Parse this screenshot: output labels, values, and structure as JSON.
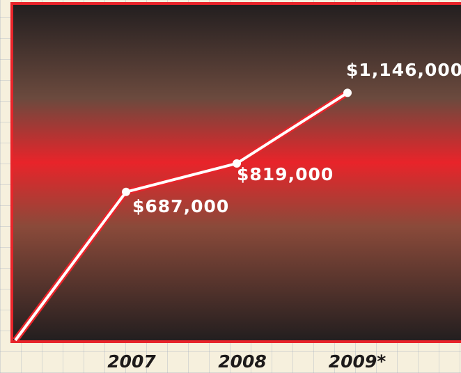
{
  "chart_data": {
    "type": "line",
    "categories": [
      null,
      "2007",
      "2008",
      "2009*"
    ],
    "values": [
      0,
      687000,
      819000,
      1146000
    ],
    "value_labels": [
      null,
      "$687,000",
      "$819,000",
      "$1,146,000"
    ],
    "color": "#ffffff",
    "ylim": [
      0,
      1550000
    ]
  }
}
